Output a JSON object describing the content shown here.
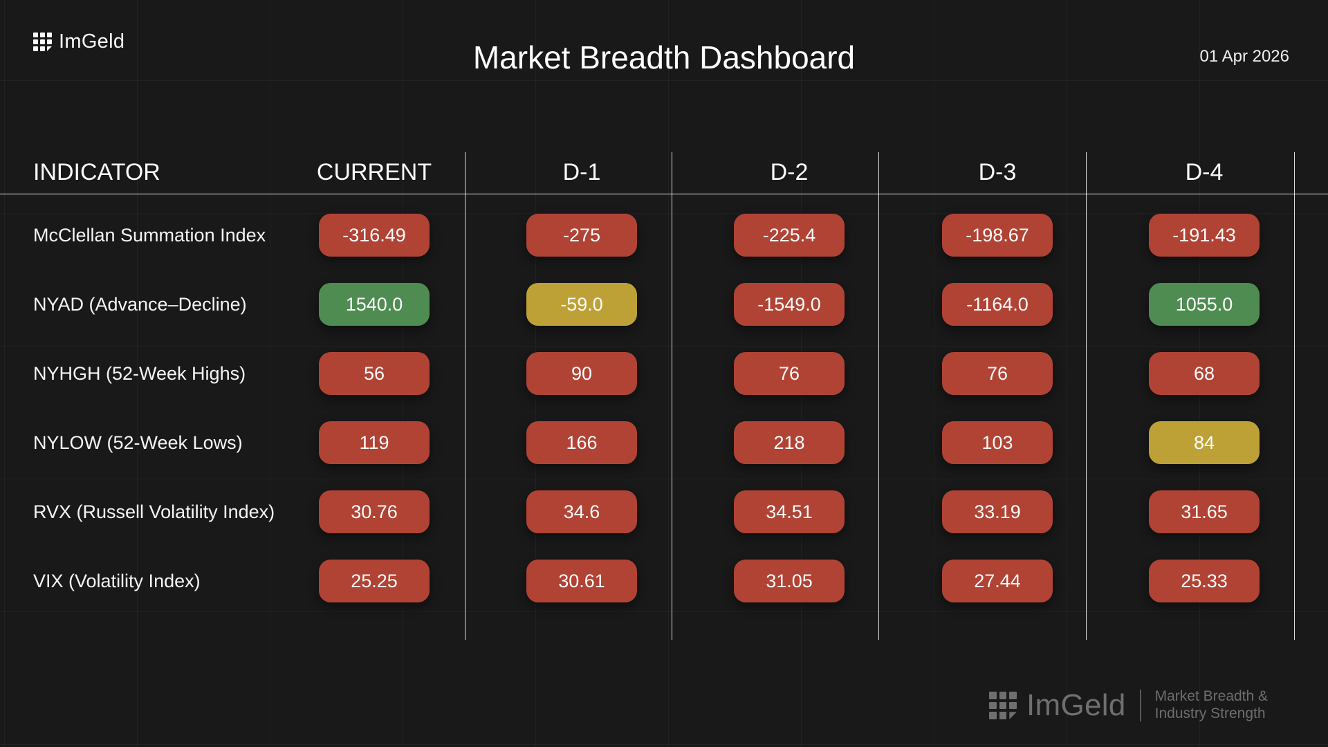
{
  "header": {
    "brand": "ImGeld",
    "title": "Market Breadth Dashboard",
    "date": "01 Apr 2026"
  },
  "table": {
    "columns": [
      "INDICATOR",
      "CURRENT",
      "D-1",
      "D-2",
      "D-3",
      "D-4"
    ],
    "rows": [
      {
        "label": "McClellan Summation Index",
        "values": [
          {
            "text": "-316.49",
            "status": "red"
          },
          {
            "text": "-275",
            "status": "red"
          },
          {
            "text": "-225.4",
            "status": "red"
          },
          {
            "text": "-198.67",
            "status": "red"
          },
          {
            "text": "-191.43",
            "status": "red"
          }
        ]
      },
      {
        "label": "NYAD (Advance–Decline)",
        "values": [
          {
            "text": "1540.0",
            "status": "green"
          },
          {
            "text": "-59.0",
            "status": "yellow"
          },
          {
            "text": "-1549.0",
            "status": "red"
          },
          {
            "text": "-1164.0",
            "status": "red"
          },
          {
            "text": "1055.0",
            "status": "green"
          }
        ]
      },
      {
        "label": "NYHGH (52-Week Highs)",
        "values": [
          {
            "text": "56",
            "status": "red"
          },
          {
            "text": "90",
            "status": "red"
          },
          {
            "text": "76",
            "status": "red"
          },
          {
            "text": "76",
            "status": "red"
          },
          {
            "text": "68",
            "status": "red"
          }
        ]
      },
      {
        "label": "NYLOW (52-Week Lows)",
        "values": [
          {
            "text": "119",
            "status": "red"
          },
          {
            "text": "166",
            "status": "red"
          },
          {
            "text": "218",
            "status": "red"
          },
          {
            "text": "103",
            "status": "red"
          },
          {
            "text": "84",
            "status": "yellow"
          }
        ]
      },
      {
        "label": "RVX (Russell Volatility Index)",
        "values": [
          {
            "text": "30.76",
            "status": "red"
          },
          {
            "text": "34.6",
            "status": "red"
          },
          {
            "text": "34.51",
            "status": "red"
          },
          {
            "text": "33.19",
            "status": "red"
          },
          {
            "text": "31.65",
            "status": "red"
          }
        ]
      },
      {
        "label": "VIX (Volatility Index)",
        "values": [
          {
            "text": "25.25",
            "status": "red"
          },
          {
            "text": "30.61",
            "status": "red"
          },
          {
            "text": "31.05",
            "status": "red"
          },
          {
            "text": "27.44",
            "status": "red"
          },
          {
            "text": "25.33",
            "status": "red"
          }
        ]
      }
    ]
  },
  "footer": {
    "brand": "ImGeld",
    "tagline_line1": "Market Breadth &",
    "tagline_line2": "Industry Strength"
  },
  "colors": {
    "red": "#b14335",
    "green": "#4f8c51",
    "yellow": "#bda137",
    "background": "#191919"
  }
}
